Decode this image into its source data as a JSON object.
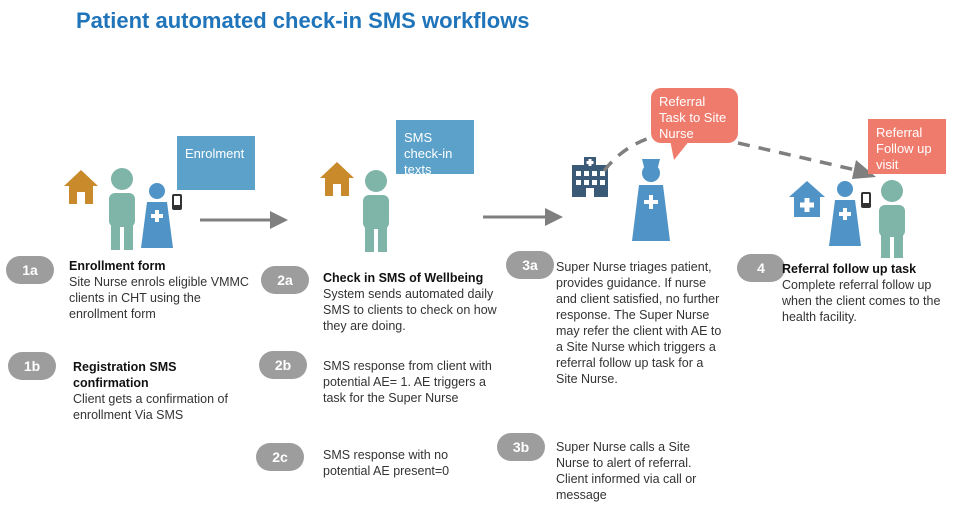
{
  "title": "Patient automated check-in SMS workflows",
  "colors": {
    "title": "#1f74ba",
    "person": "#7fb4a9",
    "nurse": "#4f93c7",
    "house": "#c98a2c",
    "callout_blue": "#5ba1c9",
    "callout_red": "#ef7b6c",
    "badge": "#9d9d9d",
    "arrow": "#7f7f7f"
  },
  "callouts": {
    "enrolment": "Enrolment",
    "sms_checkin": "SMS check-in texts",
    "referral_task": "Referral Task to Site Nurse",
    "referral_followup": "Referral Follow up visit"
  },
  "icons": [
    "house-icon",
    "person-icon",
    "nurse-icon",
    "phone-icon",
    "hospital-icon",
    "clinic-icon",
    "arrow-right-icon",
    "dashed-arrow-icon"
  ],
  "steps": {
    "s1a": {
      "badge": "1a",
      "heading": "Enrollment form",
      "text": "Site Nurse  enrols eligible VMMC clients in CHT using the enrollment form"
    },
    "s1b": {
      "badge": "1b",
      "heading": "Registration SMS confirmation",
      "text": "Client gets a confirmation of enrollment Via SMS"
    },
    "s2a": {
      "badge": "2a",
      "heading": "Check in SMS of Wellbeing",
      "text": "System sends automated daily SMS to clients to check on how  they are doing."
    },
    "s2b": {
      "badge": "2b",
      "text": "SMS response from client with potential AE= 1. AE triggers a task for the Super Nurse"
    },
    "s2c": {
      "badge": "2c",
      "text": "SMS response with no potential AE present=0"
    },
    "s3a": {
      "badge": "3a",
      "text": "Super Nurse triages patient, provides guidance. If nurse and client satisfied, no further response. The Super Nurse may refer the client with AE to a Site Nurse which triggers a referral follow up task for a Site Nurse."
    },
    "s3b": {
      "badge": "3b",
      "text": "Super Nurse calls a Site Nurse to alert of referral. Client informed via call or message"
    },
    "s4": {
      "badge": "4",
      "heading": "Referral follow up task",
      "text": "Complete referral follow up when the client comes to the health facility."
    }
  }
}
